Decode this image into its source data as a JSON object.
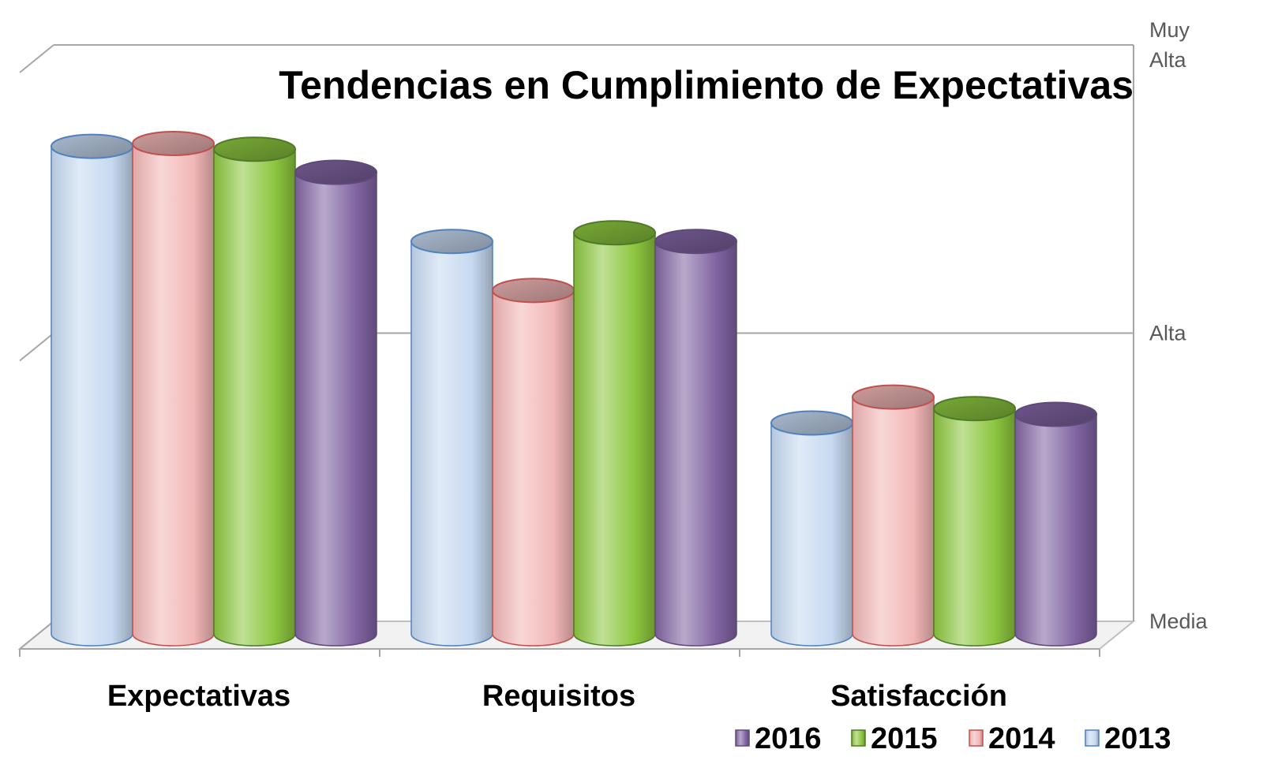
{
  "chart_data": {
    "type": "bar",
    "style": "3d-cylinder",
    "title": "Tendencias en Cumplimiento de Expectativas",
    "categories": [
      "Expectativas",
      "Requisitos",
      "Satisfacción"
    ],
    "series": [
      {
        "name": "2013",
        "values": [
          2.67,
          2.34,
          1.71
        ],
        "color": "#c6d9f1",
        "edge": "#4f81bd"
      },
      {
        "name": "2014",
        "values": [
          2.68,
          2.17,
          1.8
        ],
        "color": "#f2b7b7",
        "edge": "#c0504d"
      },
      {
        "name": "2015",
        "values": [
          2.66,
          2.37,
          1.76
        ],
        "color": "#8cc63f",
        "edge": "#4f7a28"
      },
      {
        "name": "2016",
        "values": [
          2.58,
          2.34,
          1.74
        ],
        "color": "#8064a2",
        "edge": "#5f497a"
      }
    ],
    "y_ticks": [
      {
        "value": 1,
        "label": "Media"
      },
      {
        "value": 2,
        "label": "Alta"
      },
      {
        "value": 3,
        "label": "Muy Alta"
      }
    ],
    "ylim": [
      1,
      3
    ],
    "legend": {
      "position": "bottom-right",
      "order": [
        "2016",
        "2015",
        "2014",
        "2013"
      ]
    },
    "grid": true
  }
}
